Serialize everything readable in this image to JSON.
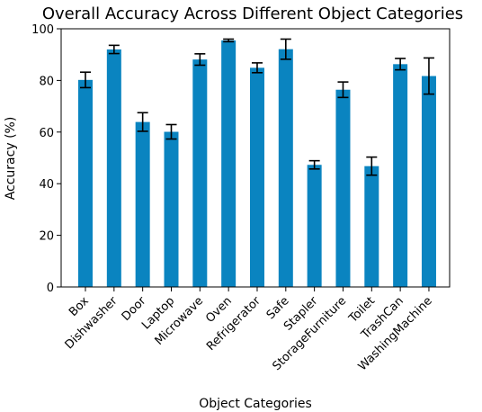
{
  "chart_data": {
    "type": "bar",
    "title": "Overall Accuracy Across Different Object Categories",
    "xlabel": "Object Categories",
    "ylabel": "Accuracy (%)",
    "ylim": [
      0,
      100
    ],
    "yticks": [
      "0",
      "20",
      "40",
      "60",
      "80",
      "100"
    ],
    "categories": [
      "Box",
      "Dishwasher",
      "Door",
      "Laptop",
      "Microwave",
      "Oven",
      "Refrigerator",
      "Safe",
      "Stapler",
      "StorageFurniture",
      "Toilet",
      "TrashCan",
      "WashingMachine"
    ],
    "values": [
      80.2,
      92.0,
      63.9,
      60.1,
      88.1,
      95.5,
      84.9,
      92.1,
      47.3,
      76.4,
      46.8,
      86.3,
      81.7
    ],
    "errors": [
      3.0,
      1.6,
      3.6,
      2.8,
      2.2,
      0.5,
      1.9,
      3.9,
      1.6,
      3.0,
      3.5,
      2.2,
      7.0
    ],
    "bar_color": "#0a84c0",
    "error_color": "#000000",
    "grid": false,
    "legend": "none"
  }
}
